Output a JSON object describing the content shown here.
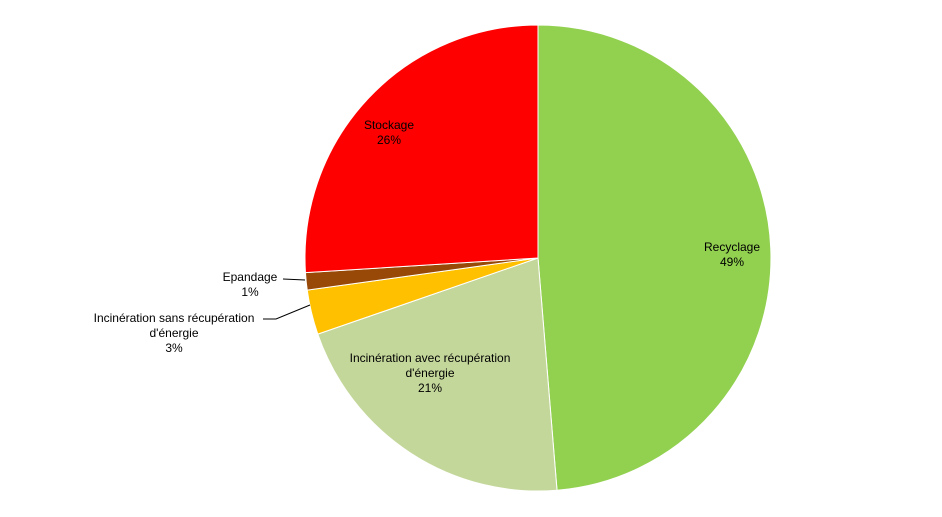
{
  "chart_data": {
    "type": "pie",
    "title": "",
    "colors": {
      "Recyclage": "#92d050",
      "Incinération avec récupération d'énergie": "#c4d79b",
      "Incinération sans récupération d'énergie": "#ffc000",
      "Epandage": "#984807",
      "Stockage": "#ff0000"
    },
    "slices": [
      {
        "lines": [
          "Recyclage"
        ],
        "pct_label": "49%",
        "value": 48.7,
        "color": "#92d050"
      },
      {
        "lines": [
          "Incinération  avec récupération",
          "d'énergie"
        ],
        "pct_label": "21%",
        "value": 21.0,
        "color": "#c4d79b"
      },
      {
        "lines": [
          "Incinération  sans récupération",
          "d'énergie"
        ],
        "pct_label": "3%",
        "value": 3.1,
        "color": "#ffc000"
      },
      {
        "lines": [
          "Epandage"
        ],
        "pct_label": "1%",
        "value": 1.2,
        "color": "#984807"
      },
      {
        "lines": [
          "Stockage"
        ],
        "pct_label": "26%",
        "value": 26.0,
        "color": "#ff0000"
      }
    ],
    "start_angle": "12 o'clock, clockwise",
    "legend": "none"
  }
}
